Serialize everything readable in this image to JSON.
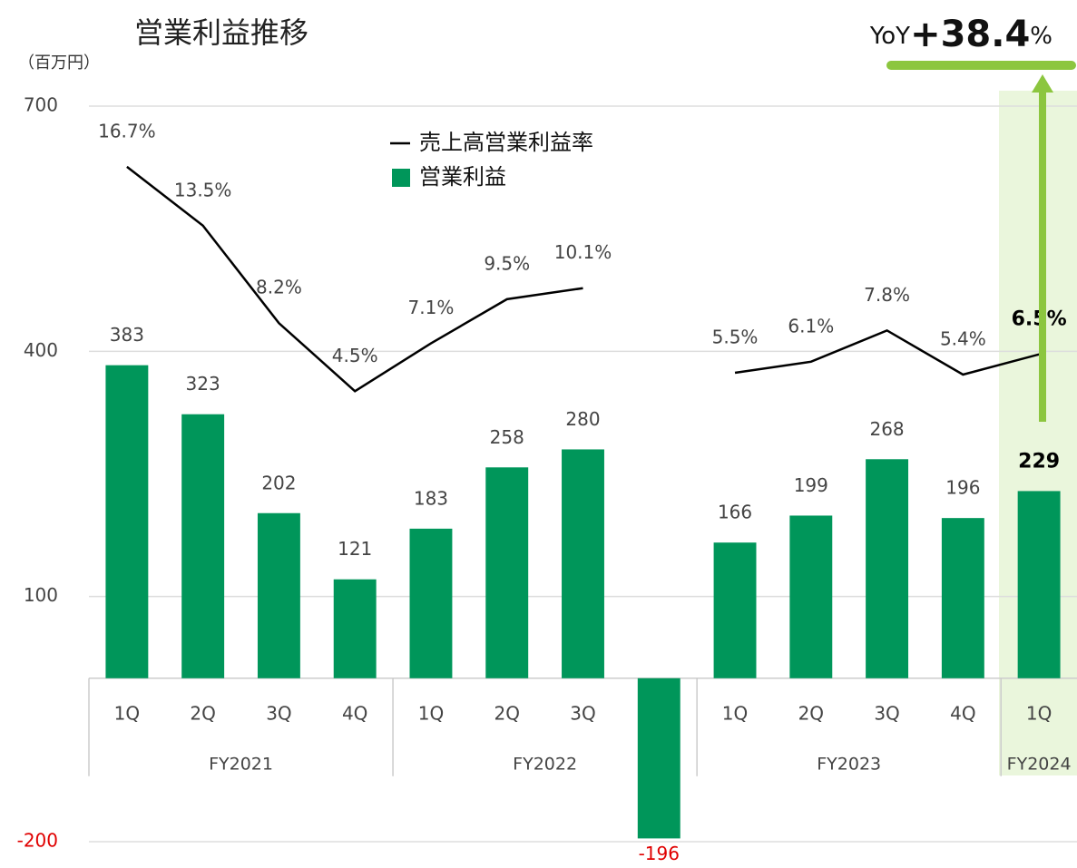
{
  "chart_data": {
    "type": "bar",
    "title": "営業利益推移",
    "y_unit": "（百万円）",
    "yoy": {
      "label": "YoY",
      "value": "+38.4",
      "unit": "%"
    },
    "categories": [
      "1Q",
      "2Q",
      "3Q",
      "4Q",
      "1Q",
      "2Q",
      "3Q",
      "4Q",
      "1Q",
      "2Q",
      "3Q",
      "4Q",
      "1Q"
    ],
    "groups": [
      {
        "name": "FY2021",
        "size": 4
      },
      {
        "name": "FY2022",
        "size": 4
      },
      {
        "name": "FY2023",
        "size": 4
      },
      {
        "name": "FY2024",
        "size": 1
      }
    ],
    "series": [
      {
        "name": "営業利益",
        "type": "bar",
        "color": "#00965a",
        "values": [
          383,
          323,
          202,
          121,
          183,
          258,
          280,
          -196,
          166,
          199,
          268,
          196,
          229
        ]
      },
      {
        "name": "売上高営業利益率",
        "type": "line",
        "color": "#000000",
        "axis": "y2",
        "values": [
          16.7,
          13.5,
          8.2,
          4.5,
          7.1,
          9.5,
          10.1,
          null,
          5.5,
          6.1,
          7.8,
          5.4,
          6.5
        ],
        "value_labels": [
          "16.7%",
          "13.5%",
          "8.2%",
          "4.5%",
          "7.1%",
          "9.5%",
          "10.1%",
          null,
          "5.5%",
          "6.1%",
          "7.8%",
          "5.4%",
          "6.5%"
        ]
      }
    ],
    "ylim": [
      -200,
      700
    ],
    "yticks": [
      -200,
      100,
      400,
      700
    ],
    "y2lim": [
      -20,
      20
    ],
    "grid": true
  }
}
